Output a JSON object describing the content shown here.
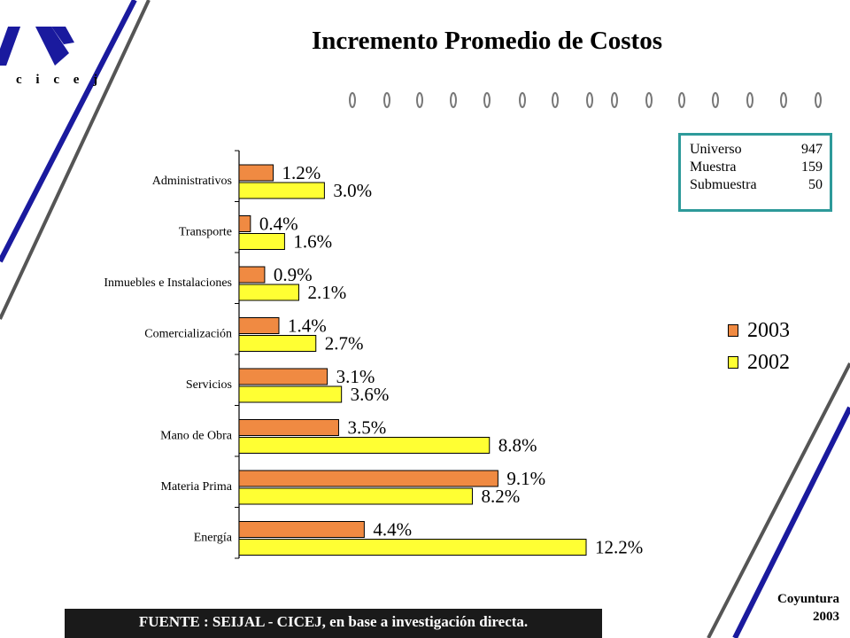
{
  "header": {
    "title": "Incremento Promedio de Costos",
    "logo_text": "c i c e j"
  },
  "stats": [
    {
      "label": "Universo",
      "value": "947"
    },
    {
      "label": "Muestra",
      "value": "159"
    },
    {
      "label": "Submuestra",
      "value": "50"
    }
  ],
  "legend": [
    {
      "label": "2003",
      "color": "#f08a42"
    },
    {
      "label": "2002",
      "color": "#ffff33"
    }
  ],
  "footer": {
    "source": "FUENTE :  SEIJAL - CICEJ,  en base a investigación directa."
  },
  "corner": {
    "line1": "Coyuntura",
    "line2": "2003"
  },
  "colors": {
    "bar_2003": "#f08a42",
    "bar_2002": "#ffff33",
    "accent_blue": "#1a1a9e",
    "accent_gray": "#555555",
    "frame": "#2e9a9a"
  },
  "chart_data": {
    "type": "bar",
    "orientation": "horizontal",
    "categories": [
      "Administrativos",
      "Transporte",
      "Inmuebles e Instalaciones",
      "Comercialización",
      "Servicios",
      "Mano de Obra",
      "Materia Prima",
      "Energía"
    ],
    "series": [
      {
        "name": "2003",
        "values": [
          1.2,
          0.4,
          0.9,
          1.4,
          3.1,
          3.5,
          9.1,
          4.4
        ],
        "labels": [
          "1.2%",
          "0.4%",
          "0.9%",
          "1.4%",
          "3.1%",
          "3.5%",
          "9.1%",
          "4.4%"
        ]
      },
      {
        "name": "2002",
        "values": [
          3.0,
          1.6,
          2.1,
          2.7,
          3.6,
          8.8,
          8.2,
          12.2
        ],
        "labels": [
          "3.0%",
          "1.6%",
          "2.1%",
          "2.7%",
          "3.6%",
          "8.8%",
          "8.2%",
          "12.2%"
        ]
      }
    ],
    "xlim": [
      0,
      12.2
    ],
    "legend_position": "right",
    "grid": false
  }
}
